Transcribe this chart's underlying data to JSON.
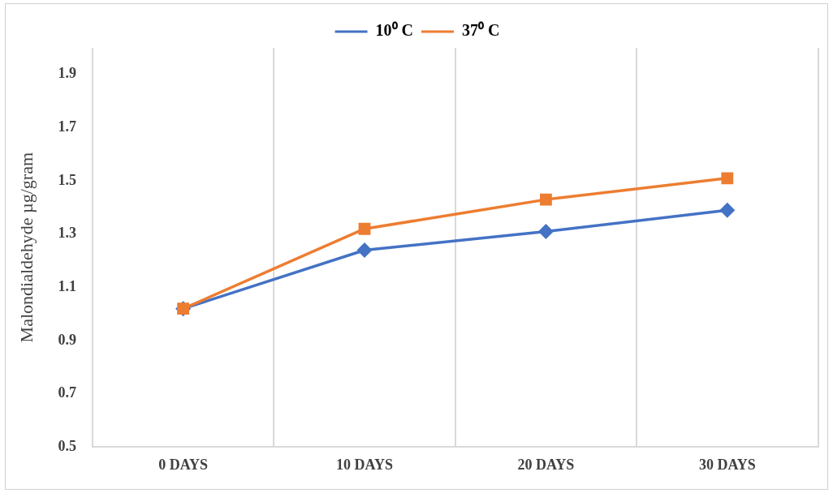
{
  "chart_data": {
    "type": "line",
    "ylabel": "Malondialdehyde µg/gram",
    "categories": [
      "0 DAYS",
      "10 DAYS",
      "20 DAYS",
      "30 DAYS"
    ],
    "series": [
      {
        "name": "10⁰ C",
        "color": "#4472c4",
        "values": [
          1.02,
          1.24,
          1.31,
          1.39
        ],
        "marker": "diamond"
      },
      {
        "name": "37⁰ C",
        "color": "#ed7d31",
        "values": [
          1.02,
          1.32,
          1.43,
          1.51
        ],
        "marker": "square"
      }
    ],
    "ylim": [
      0.5,
      2.0
    ],
    "yticks": [
      0.5,
      0.7,
      0.9,
      1.1,
      1.3,
      1.5,
      1.7,
      1.9
    ],
    "grid": "x",
    "legend": "top",
    "line_style": "solid"
  }
}
